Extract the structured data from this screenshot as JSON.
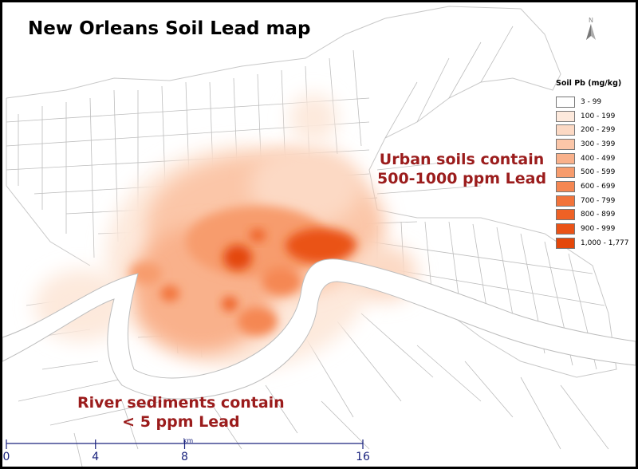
{
  "title": "New Orleans Soil Lead map",
  "annotations": {
    "urban": [
      "Urban soils contain",
      "500-1000 ppm Lead"
    ],
    "river": [
      "River sediments contain",
      "< 5 ppm Lead"
    ]
  },
  "north_label": "N",
  "legend": {
    "title": "Soil Pb (mg/kg)",
    "classes": [
      {
        "label": "3 - 99",
        "color": "#ffffff"
      },
      {
        "label": "100 - 199",
        "color": "#fde9dc"
      },
      {
        "label": "200 - 299",
        "color": "#fcd9c4"
      },
      {
        "label": "300 - 399",
        "color": "#fbc6a8"
      },
      {
        "label": "400 - 499",
        "color": "#f9b18b"
      },
      {
        "label": "500 - 599",
        "color": "#f79c6d"
      },
      {
        "label": "600 - 699",
        "color": "#f58752"
      },
      {
        "label": "700 - 799",
        "color": "#f2733a"
      },
      {
        "label": "800 - 899",
        "color": "#ee6125"
      },
      {
        "label": "900 - 999",
        "color": "#ea5317"
      },
      {
        "label": "1,000 - 1,777",
        "color": "#e4470a"
      }
    ]
  },
  "scale_bar": {
    "unit": "km",
    "ticks": [
      "0",
      "4",
      "8",
      "16"
    ],
    "values": [
      0,
      4,
      8,
      16
    ]
  },
  "colors": {
    "river": "#ffffff",
    "land": "#ffffff",
    "streets": "#b9b9b9"
  }
}
